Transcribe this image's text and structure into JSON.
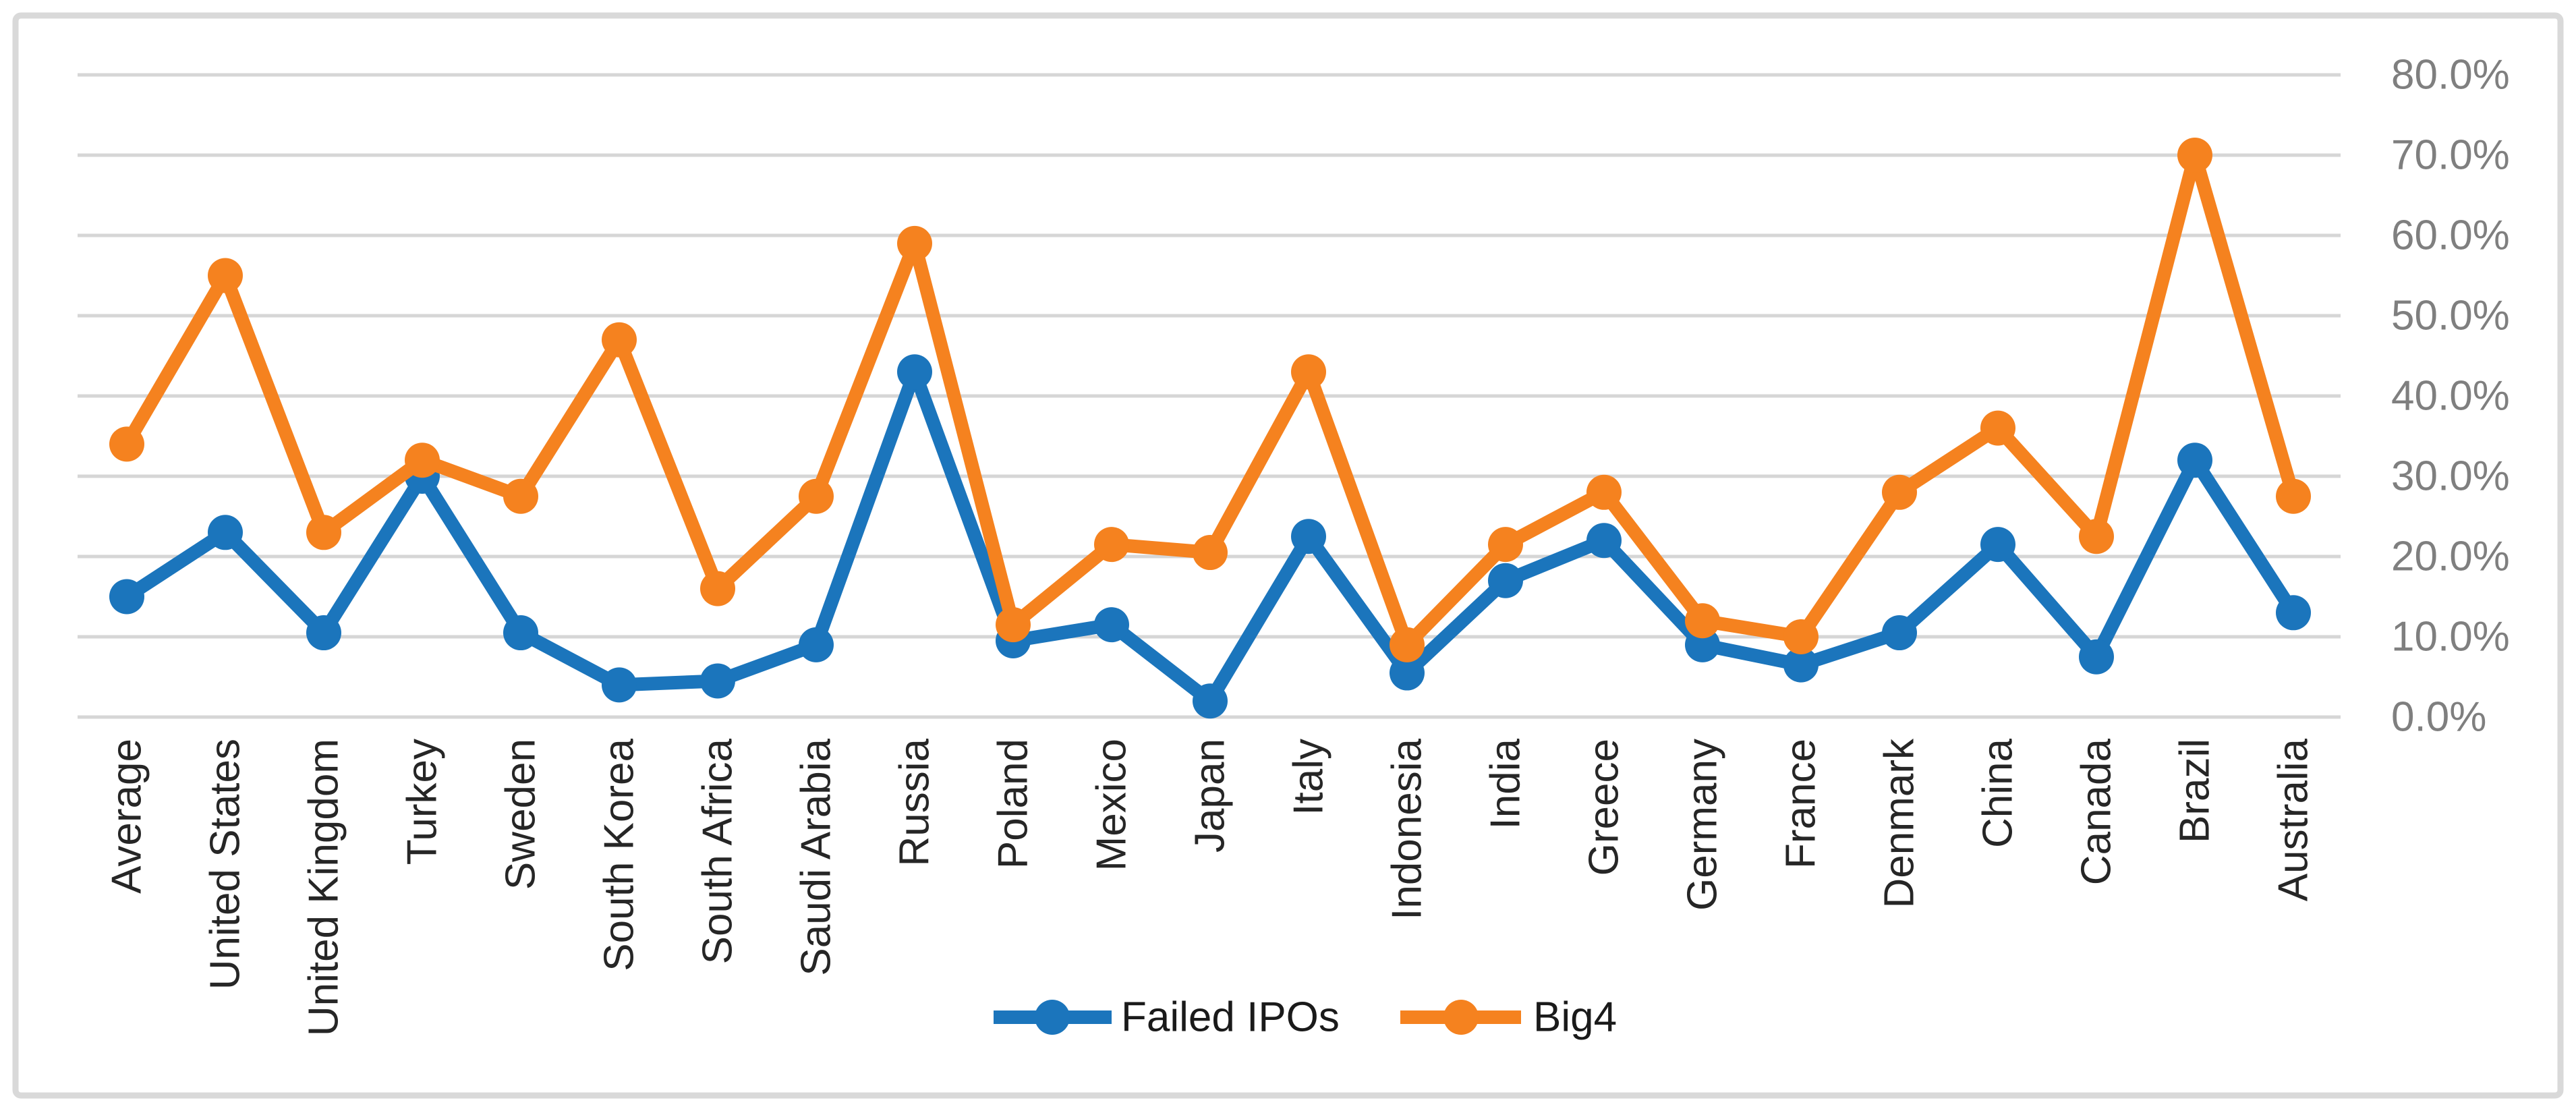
{
  "chart_data": {
    "type": "line",
    "title": "",
    "categories": [
      "Average",
      "United States",
      "United Kingdom",
      "Turkey",
      "Sweden",
      "South Korea",
      "South Africa",
      "Saudi Arabia",
      "Russia",
      "Poland",
      "Mexico",
      "Japan",
      "Italy",
      "Indonesia",
      "India",
      "Greece",
      "Germany",
      "France",
      "Denmark",
      "China",
      "Canada",
      "Brazil",
      "Australia"
    ],
    "series": [
      {
        "name": "Failed IPOs",
        "color": "#1B75BC",
        "values": [
          15,
          23,
          10.5,
          30,
          10.5,
          4,
          4.5,
          9,
          43,
          9.5,
          11.5,
          2,
          22.5,
          5.5,
          17,
          22,
          9,
          6.5,
          10.5,
          21.5,
          7.5,
          32,
          13
        ]
      },
      {
        "name": "Big4",
        "color": "#F5821F",
        "values": [
          34,
          55,
          23,
          32,
          27.5,
          47,
          16,
          27.5,
          59,
          11.5,
          21.5,
          20.5,
          43,
          9,
          21.5,
          28,
          12,
          10,
          28,
          36,
          22.5,
          70,
          27.5
        ]
      }
    ],
    "xlabel": "",
    "ylabel": "",
    "ylim": [
      0,
      80
    ],
    "ytick_step": 10,
    "ytick_labels": [
      "0.0%",
      "10.0%",
      "20.0%",
      "30.0%",
      "40.0%",
      "50.0%",
      "60.0%",
      "70.0%",
      "80.0%"
    ],
    "ytick_side": "right",
    "grid": "horizontal",
    "legend_position": "bottom-center",
    "colors": {
      "gridline": "#D6D6D6",
      "frame_border": "#D9D9D9",
      "y_axis_label": "#7F7F7F",
      "x_axis_label": "#262626",
      "legend_text": "#1A1A1A",
      "background": "#FFFFFF"
    }
  }
}
